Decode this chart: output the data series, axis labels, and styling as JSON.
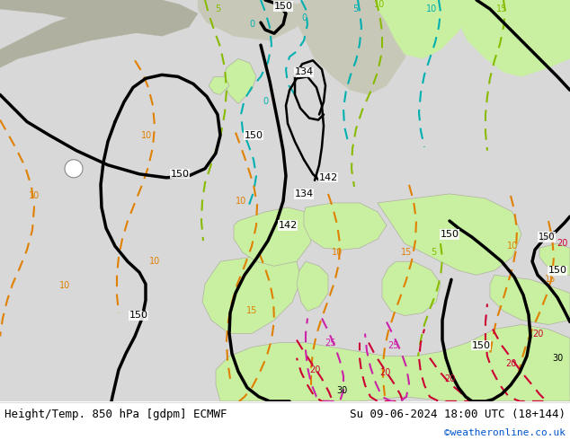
{
  "title_left": "Height/Temp. 850 hPa [gdpm] ECMWF",
  "title_right": "Su 09-06-2024 18:00 UTC (18+144)",
  "credit": "©weatheronline.co.uk",
  "fig_width": 6.34,
  "fig_height": 4.9,
  "dpi": 100,
  "bottom_bar_color": "#f0f0f0",
  "credit_color": "#0055cc",
  "title_fontsize": 9,
  "credit_fontsize": 8,
  "sea_color": "#d8d8d8",
  "land_green": "#c8f0a0",
  "land_gray": "#b0b0a0",
  "land_light_gray": "#c8c8b8",
  "black_cont_lw": 2.5,
  "black_cont_lw2": 1.8,
  "temp_cont_lw": 1.5,
  "cyan_color": "#00b0b0",
  "lime_color": "#88bb00",
  "orange_color": "#e08000",
  "red_color": "#cc0033",
  "pink_color": "#cc22aa",
  "dark_red_color": "#990022",
  "font_label": 8,
  "font_small": 7
}
